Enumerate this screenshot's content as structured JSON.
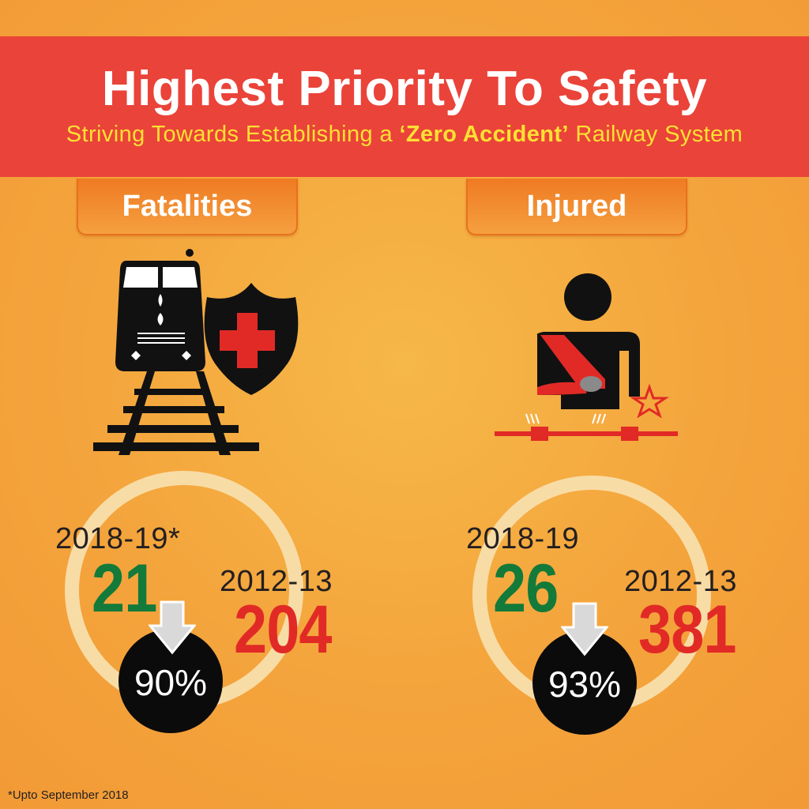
{
  "header": {
    "title": "Highest Priority To Safety",
    "subtitle_before": "Striving Towards Establishing a ",
    "subtitle_emphasis": "‘Zero Accident’",
    "subtitle_after": " Railway System"
  },
  "panels": {
    "fatalities": {
      "tab_label": "Fatalities",
      "icon": "train-with-shield-icon",
      "current_year": "2018-19*",
      "current_value": "21",
      "base_year": "2012-13",
      "base_value": "204",
      "reduction": "90%"
    },
    "injured": {
      "tab_label": "Injured",
      "icon": "injured-person-icon",
      "current_year": "2018-19",
      "current_value": "26",
      "base_year": "2012-13",
      "base_value": "381",
      "reduction": "93%"
    }
  },
  "footnote": "*Upto September 2018",
  "colors": {
    "header_bg": "#ea4339",
    "subtitle": "#ffe033",
    "current_value": "#137a3a",
    "base_value": "#e12a26",
    "badge": "#0b0b0b"
  }
}
